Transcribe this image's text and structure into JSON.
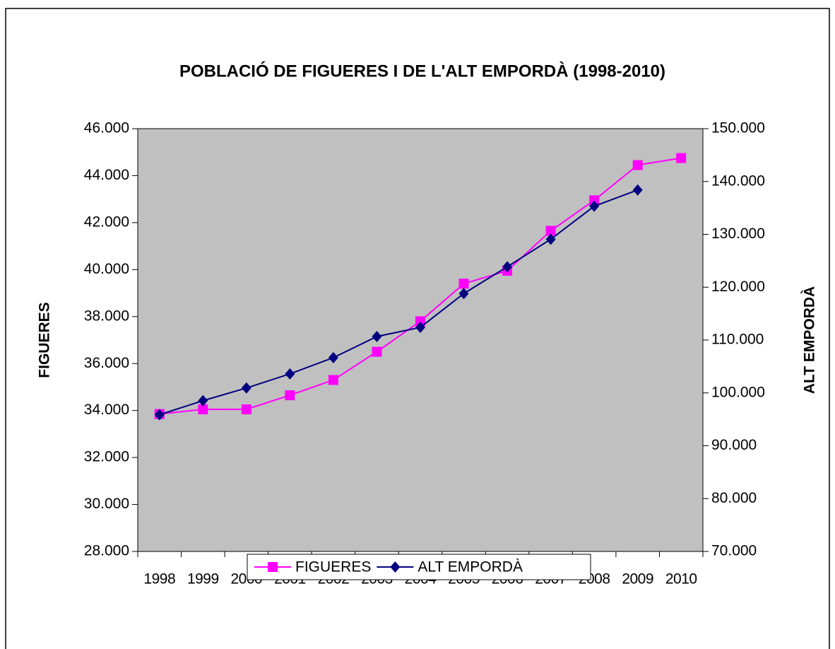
{
  "chart_data": {
    "type": "line",
    "title": "POBLACIÓ DE FIGUERES I DE L'ALT EMPORDÀ (1998-2010)",
    "y_label": "FIGUERES",
    "y2_label": "ALT EMPORDÀ",
    "categories": [
      "1998",
      "1999",
      "2000",
      "2001",
      "2002",
      "2003",
      "2004",
      "2005",
      "2006",
      "2007",
      "2008",
      "2009",
      "2010"
    ],
    "series": [
      {
        "name": "FIGUERES",
        "color": "#ff00ff",
        "marker": "square",
        "values": [
          33850,
          34050,
          34050,
          34650,
          35300,
          36500,
          37800,
          39400,
          39950,
          41650,
          42950,
          44450,
          44750
        ]
      },
      {
        "name": "ALT EMPORDÀ",
        "color": "#000080",
        "marker": "diamond",
        "axis": "y2",
        "values": [
          95870,
          98530,
          100930,
          103600,
          106670,
          110670,
          112400,
          118800,
          123870,
          129070,
          135330,
          138400,
          null
        ]
      }
    ],
    "ylim": [
      28000,
      46000
    ],
    "yticks": [
      {
        "value": 28000,
        "label": "28.000"
      },
      {
        "value": 30000,
        "label": "30.000"
      },
      {
        "value": 32000,
        "label": "32.000"
      },
      {
        "value": 34000,
        "label": "34.000"
      },
      {
        "value": 36000,
        "label": "36.000"
      },
      {
        "value": 38000,
        "label": "38.000"
      },
      {
        "value": 40000,
        "label": "40.000"
      },
      {
        "value": 42000,
        "label": "42.000"
      },
      {
        "value": 44000,
        "label": "44.000"
      },
      {
        "value": 46000,
        "label": "46.000"
      }
    ],
    "y2lim": [
      70000,
      150000
    ],
    "y2ticks": [
      {
        "value": 70000,
        "label": "70.000"
      },
      {
        "value": 80000,
        "label": "80.000"
      },
      {
        "value": 90000,
        "label": "90.000"
      },
      {
        "value": 100000,
        "label": "100.000"
      },
      {
        "value": 110000,
        "label": "110.000"
      },
      {
        "value": 120000,
        "label": "120.000"
      },
      {
        "value": 130000,
        "label": "130.000"
      },
      {
        "value": 140000,
        "label": "140.000"
      },
      {
        "value": 150000,
        "label": "150.000"
      }
    ],
    "plot_background": "#c0c0c0",
    "legend": "bottom"
  }
}
